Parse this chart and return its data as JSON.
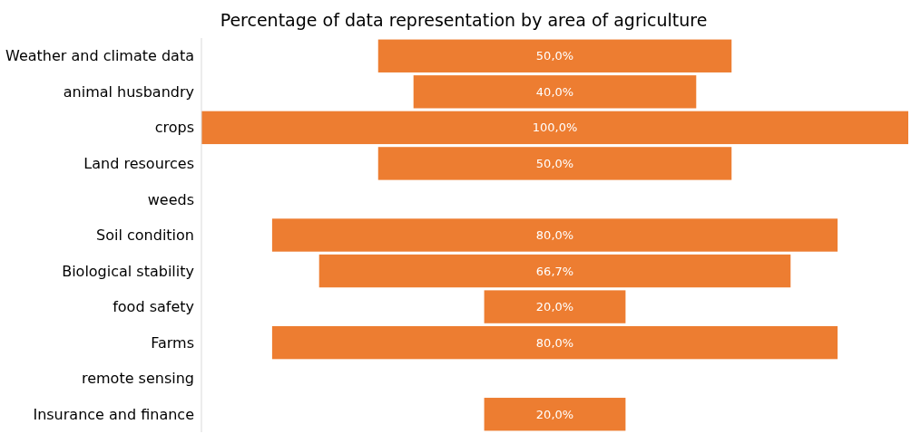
{
  "chart_data": {
    "type": "other",
    "title": "Percentage of data representation by area of agriculture",
    "categories": [
      "Weather and climate data",
      "animal husbandry",
      "crops",
      "Land resources",
      "weeds",
      "Soil condition",
      "Biological stability",
      "food safety",
      "Farms",
      "remote sensing",
      "Insurance and finance"
    ],
    "values": [
      50,
      40,
      100,
      50,
      null,
      80,
      66.7,
      20,
      80,
      null,
      20
    ],
    "value_labels": [
      "50,0%",
      "40,0%",
      "100,0%",
      "50,0%",
      null,
      "80,0%",
      "66,7%",
      "20,0%",
      "80,0%",
      null,
      "20,0%"
    ],
    "color": "#ed7d31",
    "legend": false
  }
}
